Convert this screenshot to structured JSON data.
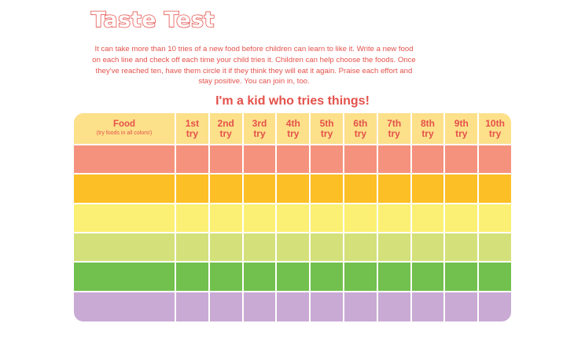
{
  "title": "Taste Test",
  "intro": "It can take more than 10 tries of a new food before children can learn to like it. Write a new food on each line and check off each time your child tries it. Children can help choose the foods. Once they've reached ten, have them circle it if they think they will eat it again. Praise each effort and stay positive. You can join in, too.",
  "subtitle": "I'm a kid who tries things!",
  "table": {
    "food_header": "Food",
    "food_note": "(try foods in all colors!)",
    "try_headers": [
      {
        "ordinal": "1st",
        "word": "try"
      },
      {
        "ordinal": "2nd",
        "word": "try"
      },
      {
        "ordinal": "3rd",
        "word": "try"
      },
      {
        "ordinal": "4th",
        "word": "try"
      },
      {
        "ordinal": "5th",
        "word": "try"
      },
      {
        "ordinal": "6th",
        "word": "try"
      },
      {
        "ordinal": "7th",
        "word": "try"
      },
      {
        "ordinal": "8th",
        "word": "try"
      },
      {
        "ordinal": "9th",
        "word": "try"
      },
      {
        "ordinal": "10th",
        "word": "try"
      }
    ],
    "row_colors": [
      "#f5927d",
      "#fdbf26",
      "#fbf073",
      "#d4e07a",
      "#72c04e",
      "#c9aad4"
    ],
    "header_color": "#fde08a",
    "accent_color": "#e4514b"
  }
}
